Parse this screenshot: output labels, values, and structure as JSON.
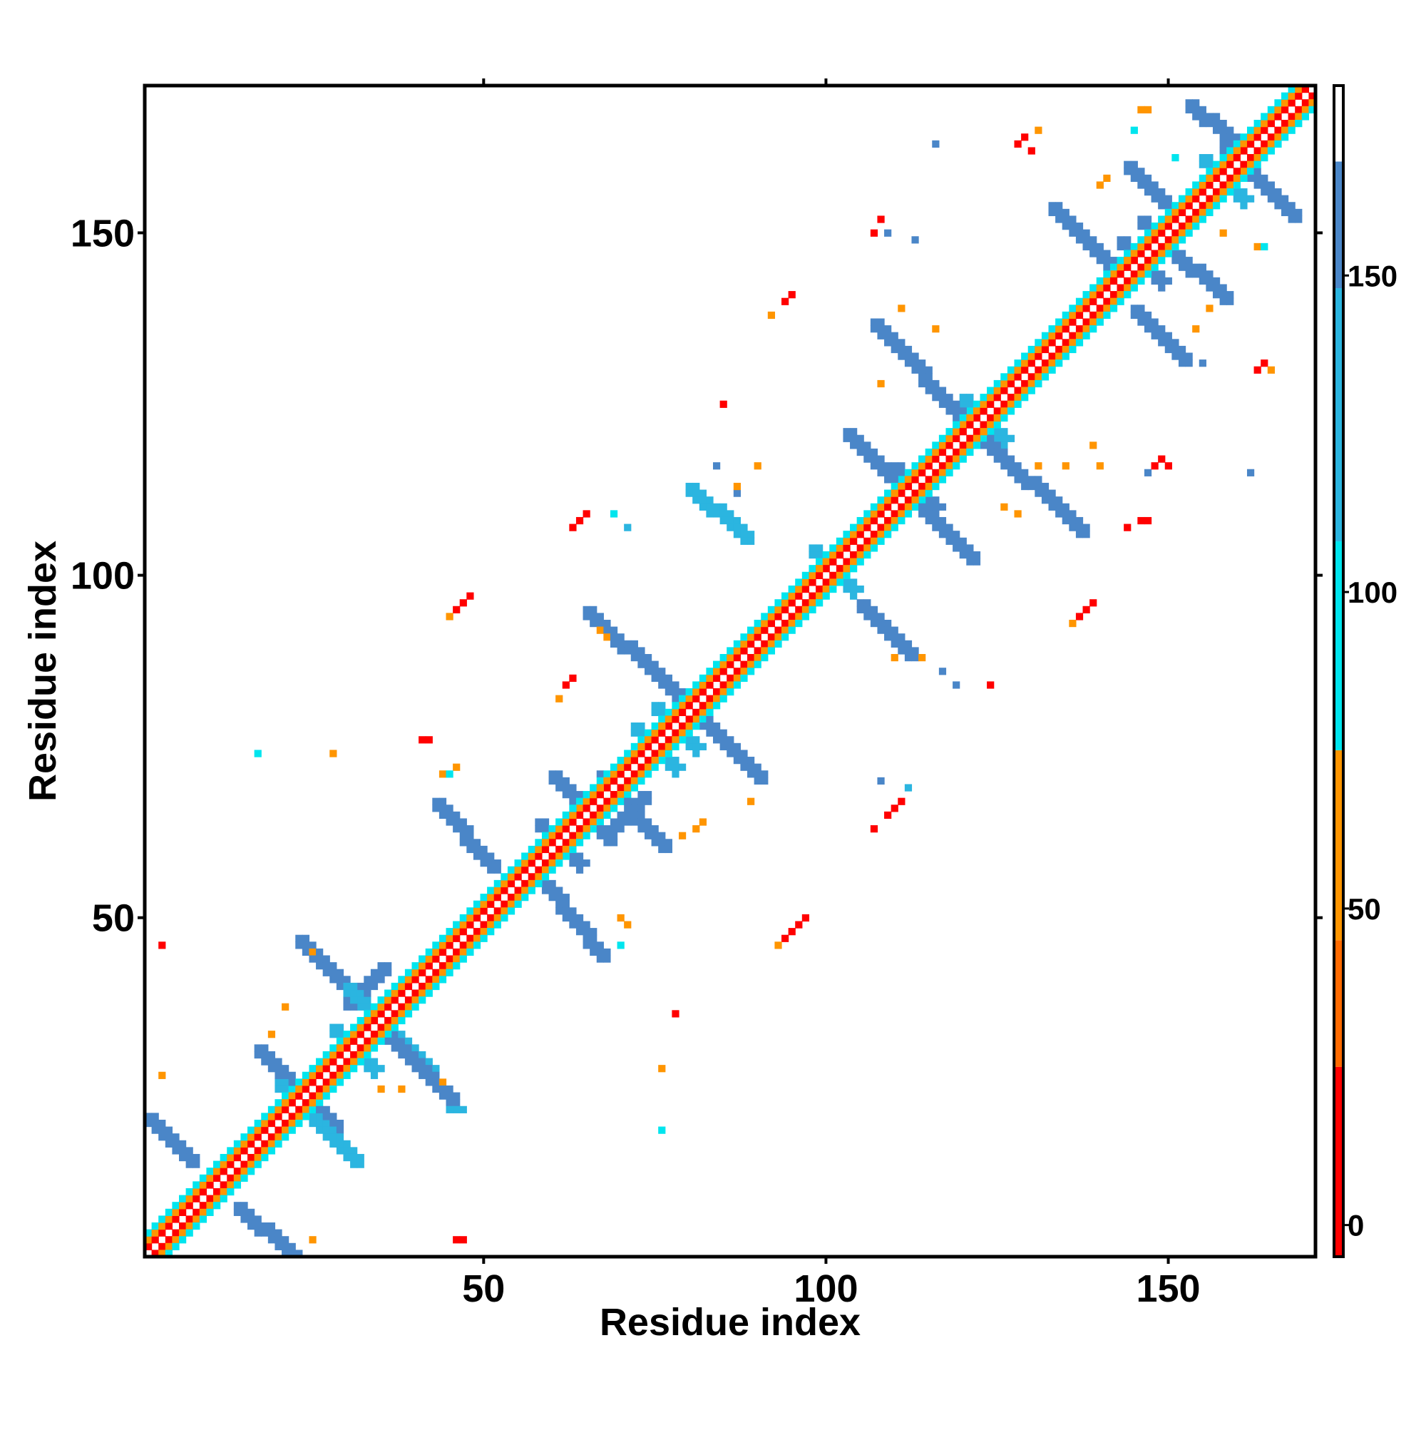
{
  "chart_data": {
    "type": "heatmap",
    "title": "",
    "xlabel": "Residue index",
    "ylabel": "Residue index",
    "xlim": [
      1,
      171
    ],
    "ylim": [
      1,
      171
    ],
    "x_ticks": [
      50,
      100,
      150
    ],
    "y_ticks": [
      50,
      100,
      150
    ],
    "x_tick_labels": [
      "50",
      "100",
      "150"
    ],
    "y_tick_labels": [
      "50",
      "100",
      "150"
    ],
    "grid": false,
    "legend": "colorbar at right",
    "colorbar": {
      "range": [
        -5,
        180
      ],
      "ticks": [
        0,
        50,
        100,
        150
      ],
      "tick_labels": [
        "0",
        "50",
        "100",
        "150"
      ],
      "bands": [
        {
          "from": -5,
          "to": 25,
          "color": "#ff0000"
        },
        {
          "from": 25,
          "to": 45,
          "color": "#ff6a00"
        },
        {
          "from": 45,
          "to": 75,
          "color": "#ff9500"
        },
        {
          "from": 75,
          "to": 108,
          "color": "#00e5ee"
        },
        {
          "from": 108,
          "to": 148,
          "color": "#2bb5e0"
        },
        {
          "from": 148,
          "to": 168,
          "color": "#4a86c8"
        },
        {
          "from": 168,
          "to": 180,
          "color": "#ffffff"
        }
      ]
    },
    "pixel_rule": "cell (x,y) with |x-y| = 0 -> 180 (white); 1 -> 0 (red); 2 -> 55 (orange); 3 -> 100 (cyan)",
    "blocks": [
      {
        "x": [
          20,
          26
        ],
        "y": [
          20,
          26
        ],
        "value": 160
      },
      {
        "x": [
          28,
          34
        ],
        "y": [
          28,
          34
        ],
        "value": 130
      },
      {
        "x": [
          32,
          38
        ],
        "y": [
          32,
          38
        ],
        "value": 160
      },
      {
        "x": [
          30,
          36
        ],
        "y": [
          37,
          43
        ],
        "value": 160
      },
      {
        "x": [
          58,
          64
        ],
        "y": [
          58,
          64
        ],
        "value": 160
      },
      {
        "x": [
          68,
          74
        ],
        "y": [
          62,
          68
        ],
        "value": 160
      },
      {
        "x": [
          72,
          78
        ],
        "y": [
          72,
          78
        ],
        "value": 130
      },
      {
        "x": [
          75,
          81
        ],
        "y": [
          75,
          81
        ],
        "value": 130
      },
      {
        "x": [
          98,
          104
        ],
        "y": [
          98,
          104
        ],
        "value": 130
      },
      {
        "x": [
          110,
          116
        ],
        "y": [
          110,
          116
        ],
        "value": 160
      },
      {
        "x": [
          120,
          126
        ],
        "y": [
          120,
          126
        ],
        "value": 130
      },
      {
        "x": [
          143,
          149
        ],
        "y": [
          143,
          149
        ],
        "value": 160
      },
      {
        "x": [
          146,
          152
        ],
        "y": [
          146,
          152
        ],
        "value": 160
      },
      {
        "x": [
          155,
          161
        ],
        "y": [
          155,
          161
        ],
        "value": 130
      }
    ],
    "diagonals": [
      {
        "from": [
          1,
          21
        ],
        "to": [
          7,
          15
        ],
        "value": 160
      },
      {
        "from": [
          17,
          31
        ],
        "to": [
          28,
          20
        ],
        "value": 160
      },
      {
        "from": [
          20,
          26
        ],
        "to": [
          31,
          15
        ],
        "value": 130
      },
      {
        "from": [
          23,
          47
        ],
        "to": [
          29,
          41
        ],
        "value": 160
      },
      {
        "from": [
          30,
          40
        ],
        "to": [
          42,
          28
        ],
        "value": 130
      },
      {
        "from": [
          33,
          36
        ],
        "to": [
          45,
          24
        ],
        "value": 160
      },
      {
        "from": [
          14,
          8
        ],
        "to": [
          22,
          1
        ],
        "value": 160
      },
      {
        "from": [
          43,
          67
        ],
        "to": [
          51,
          58
        ],
        "value": 160
      },
      {
        "from": [
          60,
          71
        ],
        "to": [
          68,
          62
        ],
        "value": 160
      },
      {
        "from": [
          59,
          55
        ],
        "to": [
          67,
          45
        ],
        "value": 160
      },
      {
        "from": [
          65,
          95
        ],
        "to": [
          77,
          84
        ],
        "value": 160
      },
      {
        "from": [
          67,
          71
        ],
        "to": [
          76,
          61
        ],
        "value": 160
      },
      {
        "from": [
          77,
          84
        ],
        "to": [
          90,
          71
        ],
        "value": 160
      },
      {
        "from": [
          80,
          113
        ],
        "to": [
          88,
          106
        ],
        "value": 130
      },
      {
        "from": [
          105,
          96
        ],
        "to": [
          112,
          89
        ],
        "value": 160
      },
      {
        "from": [
          103,
          121
        ],
        "to": [
          111,
          113
        ],
        "value": 160
      },
      {
        "from": [
          107,
          137
        ],
        "to": [
          120,
          123
        ],
        "value": 160
      },
      {
        "from": [
          112,
          112
        ],
        "to": [
          121,
          103
        ],
        "value": 160
      },
      {
        "from": [
          123,
          120
        ],
        "to": [
          137,
          107
        ],
        "value": 160
      },
      {
        "from": [
          133,
          154
        ],
        "to": [
          143,
          144
        ],
        "value": 160
      },
      {
        "from": [
          144,
          160
        ],
        "to": [
          151,
          153
        ],
        "value": 160
      },
      {
        "from": [
          149,
          149
        ],
        "to": [
          158,
          141
        ],
        "value": 160
      },
      {
        "from": [
          145,
          139
        ],
        "to": [
          152,
          132
        ],
        "value": 160
      },
      {
        "from": [
          153,
          169
        ],
        "to": [
          162,
          162
        ],
        "value": 160
      },
      {
        "from": [
          158,
          163
        ],
        "to": [
          168,
          153
        ],
        "value": 160
      }
    ],
    "cells": [
      [
        3,
        46,
        0
      ],
      [
        3,
        27,
        50
      ],
      [
        19,
        33,
        50
      ],
      [
        25,
        45,
        50
      ],
      [
        21,
        37,
        50
      ],
      [
        35,
        25,
        50
      ],
      [
        38,
        25,
        50
      ],
      [
        44,
        26,
        50
      ],
      [
        45,
        22,
        130
      ],
      [
        46,
        22,
        130
      ],
      [
        47,
        22,
        130
      ],
      [
        46,
        3,
        0
      ],
      [
        47,
        3,
        0
      ],
      [
        25,
        3,
        50
      ],
      [
        41,
        76,
        0
      ],
      [
        42,
        76,
        0
      ],
      [
        17,
        74,
        100
      ],
      [
        28,
        74,
        50
      ],
      [
        46,
        95,
        0
      ],
      [
        47,
        96,
        0
      ],
      [
        48,
        97,
        0
      ],
      [
        45,
        94,
        50
      ],
      [
        63,
        107,
        0
      ],
      [
        64,
        108,
        0
      ],
      [
        65,
        109,
        0
      ],
      [
        69,
        109,
        100
      ],
      [
        71,
        107,
        130
      ],
      [
        62,
        84,
        0
      ],
      [
        63,
        85,
        0
      ],
      [
        61,
        82,
        50
      ],
      [
        67,
        92,
        50
      ],
      [
        68,
        91,
        50
      ],
      [
        44,
        71,
        50
      ],
      [
        46,
        72,
        50
      ],
      [
        45,
        71,
        100
      ],
      [
        61,
        62,
        50
      ],
      [
        70,
        50,
        50
      ],
      [
        71,
        49,
        50
      ],
      [
        70,
        46,
        100
      ],
      [
        78,
        36,
        0
      ],
      [
        76,
        28,
        50
      ],
      [
        76,
        19,
        100
      ],
      [
        79,
        62,
        50
      ],
      [
        81,
        63,
        50
      ],
      [
        82,
        64,
        50
      ],
      [
        89,
        67,
        50
      ],
      [
        94,
        47,
        0
      ],
      [
        95,
        48,
        0
      ],
      [
        96,
        49,
        0
      ],
      [
        97,
        50,
        0
      ],
      [
        93,
        46,
        50
      ],
      [
        94,
        140,
        0
      ],
      [
        95,
        141,
        0
      ],
      [
        92,
        138,
        50
      ],
      [
        85,
        125,
        0
      ],
      [
        84,
        116,
        160
      ],
      [
        87,
        112,
        160
      ],
      [
        87,
        113,
        50
      ],
      [
        90,
        116,
        50
      ],
      [
        108,
        152,
        0
      ],
      [
        107,
        150,
        0
      ],
      [
        109,
        150,
        160
      ],
      [
        113,
        149,
        160
      ],
      [
        108,
        128,
        50
      ],
      [
        111,
        139,
        50
      ],
      [
        116,
        136,
        50
      ],
      [
        110,
        88,
        50
      ],
      [
        114,
        88,
        50
      ],
      [
        117,
        86,
        160
      ],
      [
        119,
        84,
        160
      ],
      [
        124,
        84,
        0
      ],
      [
        108,
        70,
        160
      ],
      [
        112,
        69,
        130
      ],
      [
        107,
        63,
        0
      ],
      [
        109,
        65,
        0
      ],
      [
        110,
        66,
        0
      ],
      [
        111,
        67,
        0
      ],
      [
        116,
        163,
        160
      ],
      [
        128,
        163,
        0
      ],
      [
        129,
        164,
        0
      ],
      [
        130,
        162,
        0
      ],
      [
        131,
        165,
        50
      ],
      [
        140,
        157,
        50
      ],
      [
        141,
        158,
        50
      ],
      [
        146,
        168,
        50
      ],
      [
        147,
        168,
        50
      ],
      [
        145,
        165,
        100
      ],
      [
        151,
        161,
        100
      ],
      [
        158,
        150,
        50
      ],
      [
        163,
        148,
        50
      ],
      [
        164,
        148,
        100
      ],
      [
        154,
        136,
        50
      ],
      [
        156,
        139,
        50
      ],
      [
        163,
        130,
        0
      ],
      [
        164,
        131,
        0
      ],
      [
        165,
        130,
        50
      ],
      [
        155,
        131,
        160
      ],
      [
        162,
        115,
        160
      ],
      [
        147,
        115,
        160
      ],
      [
        148,
        116,
        0
      ],
      [
        149,
        117,
        0
      ],
      [
        150,
        116,
        0
      ],
      [
        140,
        116,
        50
      ],
      [
        139,
        119,
        50
      ],
      [
        137,
        94,
        0
      ],
      [
        138,
        95,
        0
      ],
      [
        139,
        96,
        0
      ],
      [
        136,
        93,
        50
      ],
      [
        144,
        107,
        0
      ],
      [
        146,
        108,
        0
      ],
      [
        147,
        108,
        0
      ],
      [
        128,
        109,
        50
      ],
      [
        131,
        116,
        50
      ],
      [
        126,
        110,
        50
      ],
      [
        135,
        116,
        50
      ]
    ]
  }
}
